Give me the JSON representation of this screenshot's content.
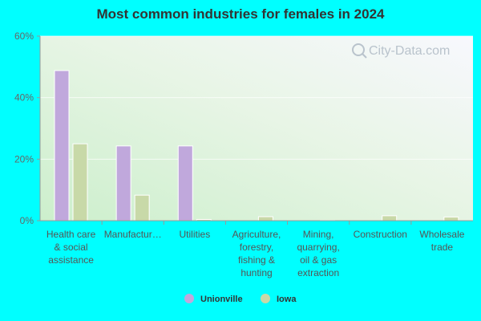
{
  "title": "Most common industries for females in 2024",
  "watermark": "City-Data.com",
  "chart_data": {
    "type": "bar",
    "title": "Most common industries for females in 2024",
    "categories": [
      [
        "Health care",
        "& social",
        "assistance"
      ],
      [
        "Manufactur…"
      ],
      [
        "Utilities"
      ],
      [
        "Agriculture,",
        "forestry,",
        "fishing &",
        "hunting"
      ],
      [
        "Mining,",
        "quarrying,",
        "oil & gas",
        "extraction"
      ],
      [
        "Construction"
      ],
      [
        "Wholesale",
        "trade"
      ]
    ],
    "series": [
      {
        "name": "Unionville",
        "color": "#c0a8dc",
        "values": [
          48.8,
          24.3,
          24.3,
          0,
          0,
          0,
          0
        ]
      },
      {
        "name": "Iowa",
        "color": "#c8d9a8",
        "values": [
          25.0,
          8.3,
          0.4,
          1.3,
          0.1,
          1.6,
          1.2
        ]
      }
    ],
    "y_ticks": [
      "0%",
      "20%",
      "40%",
      "60%"
    ],
    "ylim": [
      0,
      60
    ],
    "grid": true,
    "legend_position": "bottom-center",
    "xlabel": "",
    "ylabel": ""
  }
}
